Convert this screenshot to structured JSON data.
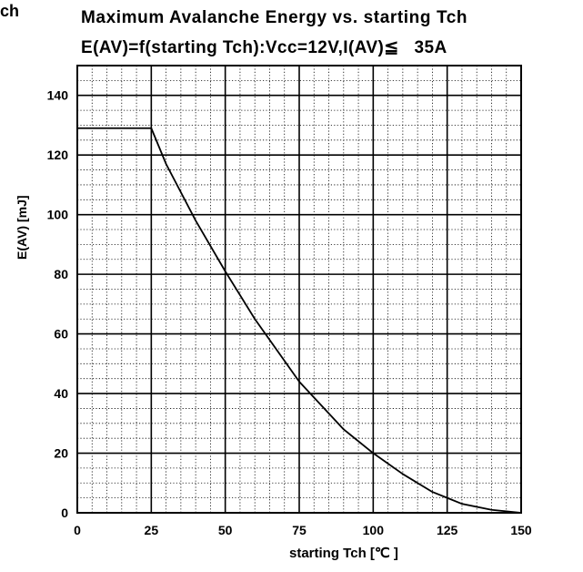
{
  "corner_text": "ch",
  "title_line1": "Maximum Avalanche Energy vs. starting Tch",
  "title_line2": "E(AV)=f(starting Tch):Vcc=12V,I(AV)≦   35A",
  "colors": {
    "line": "#000000",
    "grid_major": "#000000",
    "grid_minor": "#000000",
    "background": "#ffffff"
  },
  "chart_data": {
    "type": "line",
    "xlabel": "starting Tch [℃ ]",
    "ylabel": "E(AV) [mJ]",
    "xlim": [
      0,
      150
    ],
    "ylim": [
      0,
      150
    ],
    "x_ticks": [
      0,
      25,
      50,
      75,
      100,
      125,
      150
    ],
    "y_ticks": [
      0,
      20,
      40,
      60,
      80,
      100,
      120,
      140
    ],
    "grid": true,
    "series": [
      {
        "x": [
          0,
          25,
          25,
          30,
          40,
          50,
          60,
          75,
          90,
          100,
          110,
          120,
          125,
          130,
          140,
          150
        ],
        "y": [
          129,
          129,
          129,
          117,
          98,
          81,
          65,
          44,
          28,
          20,
          13,
          7,
          5,
          3,
          1,
          0
        ]
      }
    ]
  }
}
